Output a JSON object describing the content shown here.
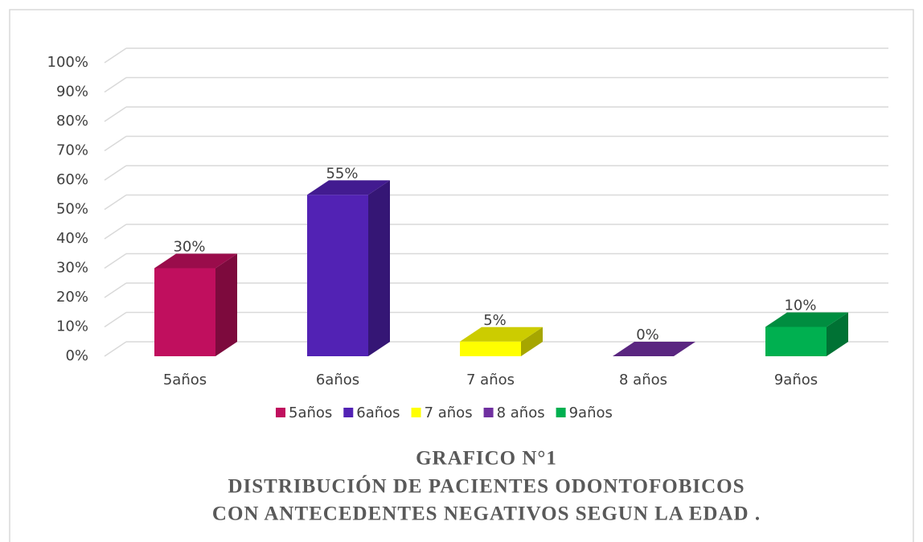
{
  "chart_data": {
    "type": "bar3d",
    "title_lines": [
      "GRAFICO N°1",
      "DISTRIBUCIÓN DE PACIENTES ODONTOFOBICOS",
      "CON ANTECEDENTES NEGATIVOS SEGUN LA EDAD ."
    ],
    "categories": [
      "5años",
      "6años",
      "7 años",
      "8 años",
      "9años"
    ],
    "values": [
      30,
      55,
      5,
      0,
      10
    ],
    "value_labels": [
      "30%",
      "55%",
      "5%",
      "0%",
      "10%"
    ],
    "colors": [
      "#c00f5e",
      "#5222b4",
      "#ffff00",
      "#7030a0",
      "#00b050"
    ],
    "ylim": [
      0,
      100
    ],
    "yticks": [
      {
        "value": 0,
        "label": "0%"
      },
      {
        "value": 10,
        "label": "10%"
      },
      {
        "value": 20,
        "label": "20%"
      },
      {
        "value": 30,
        "label": "30%"
      },
      {
        "value": 40,
        "label": "40%"
      },
      {
        "value": 50,
        "label": "50%"
      },
      {
        "value": 60,
        "label": "60%"
      },
      {
        "value": 70,
        "label": "70%"
      },
      {
        "value": 80,
        "label": "80%"
      },
      {
        "value": 90,
        "label": "90%"
      },
      {
        "value": 100,
        "label": "100%"
      }
    ],
    "grid": true,
    "legend": "bottom"
  }
}
